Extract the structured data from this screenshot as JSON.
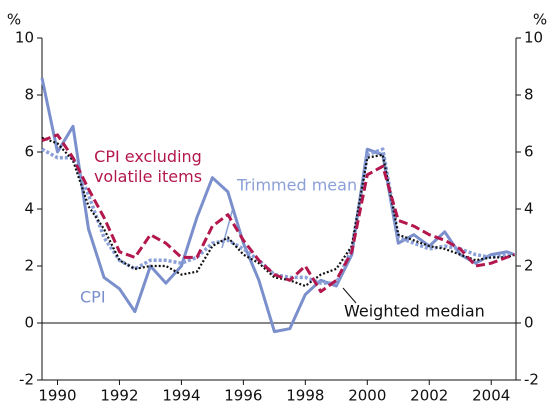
{
  "chart_data": {
    "type": "line",
    "ylabel": "%",
    "y2label": "%",
    "x": [
      1989.5,
      1990,
      1990.5,
      1991,
      1991.5,
      1992,
      1992.5,
      1993,
      1993.5,
      1994,
      1994.5,
      1995,
      1995.5,
      1996,
      1996.5,
      1997,
      1997.5,
      1998,
      1998.5,
      1999,
      1999.5,
      2000,
      2000.5,
      2001,
      2001.5,
      2002,
      2002.5,
      2003,
      2003.5,
      2004,
      2004.5,
      2004.75
    ],
    "xlim": [
      1989.5,
      2004.8
    ],
    "xticks": [
      1990,
      1992,
      1994,
      1996,
      1998,
      2000,
      2002,
      2004
    ],
    "ylim": [
      -2,
      10
    ],
    "yticks": [
      -2,
      0,
      2,
      4,
      6,
      8,
      10
    ],
    "y2lim": [
      -2,
      10
    ],
    "y2ticks": [
      -2,
      0,
      2,
      4,
      6,
      8,
      10
    ],
    "series": [
      {
        "name": "CPI",
        "color": "#7a8fcc",
        "style": "solid",
        "values": [
          8.6,
          6.0,
          6.9,
          3.3,
          1.6,
          1.2,
          0.4,
          2.0,
          1.4,
          2.0,
          3.7,
          5.1,
          4.6,
          2.8,
          1.5,
          -0.3,
          -0.2,
          1.0,
          1.5,
          1.3,
          2.4,
          6.1,
          5.9,
          2.8,
          3.1,
          2.7,
          3.2,
          2.4,
          2.1,
          2.4,
          2.5,
          2.4
        ]
      },
      {
        "name": "CPI excluding volatile items",
        "color": "#b3174e",
        "style": "dashed",
        "values": [
          6.4,
          6.6,
          5.8,
          4.7,
          3.7,
          2.5,
          2.3,
          3.1,
          2.8,
          2.3,
          2.3,
          3.4,
          3.8,
          2.9,
          2.2,
          1.7,
          1.5,
          2.0,
          1.1,
          1.5,
          2.5,
          5.2,
          5.5,
          3.6,
          3.4,
          3.1,
          2.9,
          2.6,
          2.0,
          2.1,
          2.3,
          2.4
        ]
      },
      {
        "name": "Trimmed mean",
        "color": "#8ba0d8",
        "style": "dotted",
        "values": [
          6.1,
          5.8,
          5.8,
          4.5,
          3.0,
          2.2,
          1.9,
          2.2,
          2.2,
          2.1,
          2.3,
          2.8,
          2.9,
          2.6,
          2.2,
          1.7,
          1.6,
          1.6,
          1.4,
          1.4,
          2.6,
          5.9,
          6.1,
          3.0,
          2.8,
          2.6,
          2.7,
          2.6,
          2.4,
          2.3,
          2.4,
          2.4
        ]
      },
      {
        "name": "Weighted median",
        "color": "#111111",
        "style": "fine-dotted",
        "values": [
          6.5,
          6.3,
          5.7,
          4.1,
          3.3,
          2.2,
          1.9,
          2.0,
          2.0,
          1.7,
          1.8,
          2.7,
          3.0,
          2.4,
          2.1,
          1.6,
          1.5,
          1.3,
          1.7,
          1.9,
          2.7,
          5.8,
          5.9,
          3.1,
          2.9,
          2.7,
          2.6,
          2.4,
          2.2,
          2.3,
          2.3,
          2.4
        ]
      }
    ]
  }
}
